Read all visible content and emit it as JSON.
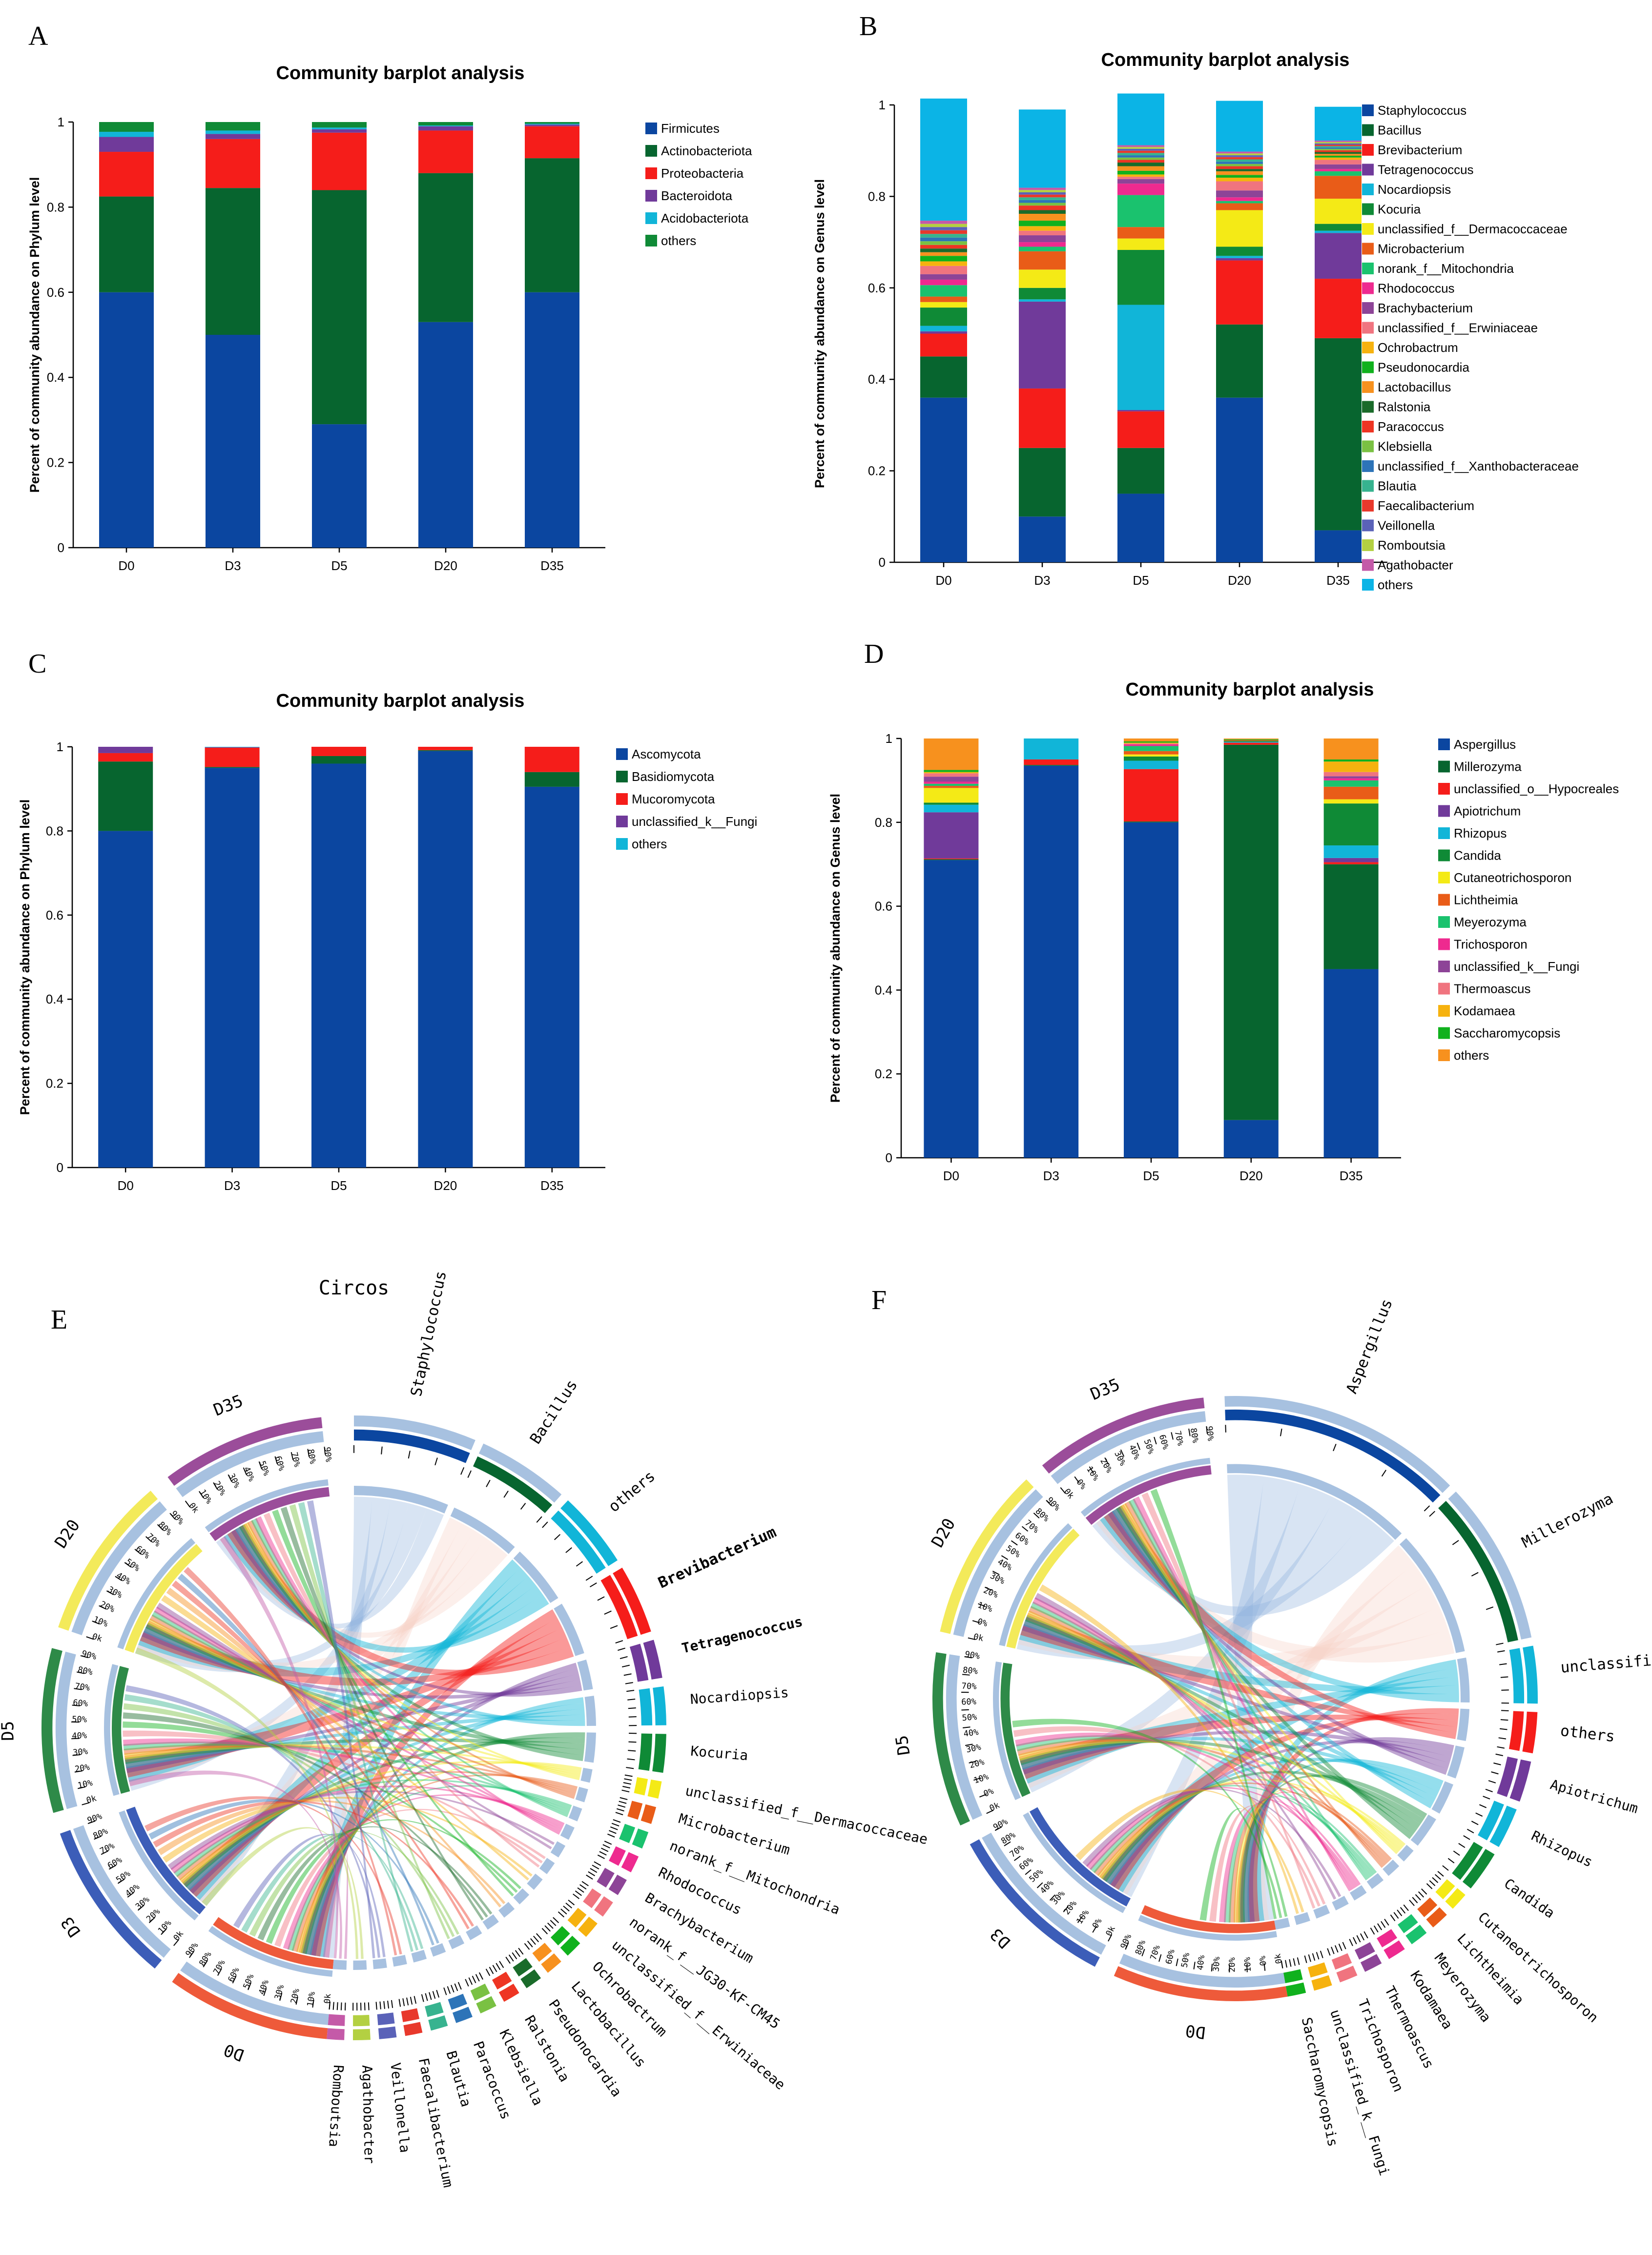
{
  "panels": {
    "A": {
      "letter": "A"
    },
    "B": {
      "letter": "B"
    },
    "C": {
      "letter": "C"
    },
    "D": {
      "letter": "D"
    },
    "E": {
      "letter": "E",
      "title": "Circos"
    },
    "F": {
      "letter": "F"
    }
  },
  "chart_data": [
    {
      "id": "A",
      "type": "bar",
      "stacked": true,
      "title": "Community barplot analysis",
      "xlabel": "",
      "ylabel": "Percent of community abundance on Phylum level",
      "ylim": [
        0,
        1
      ],
      "yticks": [
        "0",
        "0.2",
        "0.4",
        "0.6",
        "0.8",
        "1"
      ],
      "categories": [
        "D0",
        "D3",
        "D5",
        "D20",
        "D35"
      ],
      "legend_position": "right",
      "series": [
        {
          "name": "Firmicutes",
          "color": "#0b46a0",
          "values": [
            0.6,
            0.5,
            0.29,
            0.53,
            0.6
          ]
        },
        {
          "name": "Actinobacteriota",
          "color": "#07652f",
          "values": [
            0.225,
            0.345,
            0.55,
            0.35,
            0.315
          ]
        },
        {
          "name": "Proteobacteria",
          "color": "#f51d1a",
          "values": [
            0.105,
            0.115,
            0.135,
            0.1,
            0.075
          ]
        },
        {
          "name": "Bacteroidota",
          "color": "#703a9a",
          "values": [
            0.035,
            0.012,
            0.008,
            0.01,
            0.004
          ]
        },
        {
          "name": "Acidobacteriota",
          "color": "#11b5d8",
          "values": [
            0.012,
            0.008,
            0.004,
            0.002,
            0.002
          ]
        },
        {
          "name": "others",
          "color": "#0f8a36",
          "values": [
            0.023,
            0.02,
            0.013,
            0.008,
            0.004
          ]
        }
      ]
    },
    {
      "id": "B",
      "type": "bar",
      "stacked": true,
      "title": "Community barplot analysis",
      "xlabel": "",
      "ylabel": "Percent of community abundance on Genus level",
      "ylim": [
        0,
        1
      ],
      "yticks": [
        "0",
        "0.2",
        "0.4",
        "0.6",
        "0.8",
        "1"
      ],
      "categories": [
        "D0",
        "D3",
        "D5",
        "D20",
        "D35"
      ],
      "legend_position": "right",
      "series": [
        {
          "name": "Staphylococcus",
          "color": "#0b46a0",
          "values": [
            0.36,
            0.1,
            0.15,
            0.36,
            0.07
          ]
        },
        {
          "name": "Bacillus",
          "color": "#07652f",
          "values": [
            0.09,
            0.15,
            0.1,
            0.16,
            0.42
          ]
        },
        {
          "name": "Brevibacterium",
          "color": "#f51d1a",
          "values": [
            0.05,
            0.13,
            0.08,
            0.14,
            0.13
          ]
        },
        {
          "name": "Tetragenococcus",
          "color": "#703a9a",
          "values": [
            0.005,
            0.19,
            0.003,
            0.005,
            0.1
          ]
        },
        {
          "name": "Nocardiopsis",
          "color": "#11b5d8",
          "values": [
            0.012,
            0.005,
            0.23,
            0.005,
            0.005
          ]
        },
        {
          "name": "Kocuria",
          "color": "#0f8a36",
          "values": [
            0.04,
            0.025,
            0.12,
            0.02,
            0.015
          ]
        },
        {
          "name": "unclassified_f__Dermacoccaceae",
          "color": "#f4ea16",
          "values": [
            0.012,
            0.04,
            0.025,
            0.08,
            0.055
          ]
        },
        {
          "name": "Microbacterium",
          "color": "#e95c18",
          "values": [
            0.012,
            0.04,
            0.025,
            0.015,
            0.05
          ]
        },
        {
          "name": "norank_f__Mitochondria",
          "color": "#1ac26e",
          "values": [
            0.025,
            0.01,
            0.07,
            0.005,
            0.01
          ]
        },
        {
          "name": "Rhodococcus",
          "color": "#ee2a8f",
          "values": [
            0.012,
            0.01,
            0.025,
            0.008,
            0.005
          ]
        },
        {
          "name": "Brachybacterium",
          "color": "#8d4497",
          "values": [
            0.012,
            0.015,
            0.01,
            0.015,
            0.01
          ]
        },
        {
          "name": "unclassified_f__Erwiniaceae",
          "color": "#f0747f",
          "values": [
            0.018,
            0.01,
            0.005,
            0.02,
            0.01
          ]
        },
        {
          "name": "Ochrobactrum",
          "color": "#f6b20f",
          "values": [
            0.01,
            0.01,
            0.005,
            0.008,
            0.005
          ]
        },
        {
          "name": "Pseudonocardia",
          "color": "#10b11d",
          "values": [
            0.012,
            0.012,
            0.008,
            0.006,
            0.004
          ]
        },
        {
          "name": "Lactobacillus",
          "color": "#f7911e",
          "values": [
            0.008,
            0.015,
            0.01,
            0.008,
            0.004
          ]
        },
        {
          "name": "Ralstonia",
          "color": "#1a6b2a",
          "values": [
            0.008,
            0.008,
            0.008,
            0.005,
            0.004
          ]
        },
        {
          "name": "Paracoccus",
          "color": "#ee3523",
          "values": [
            0.008,
            0.01,
            0.006,
            0.006,
            0.004
          ]
        },
        {
          "name": "Klebsiella",
          "color": "#7ac143",
          "values": [
            0.008,
            0.006,
            0.005,
            0.005,
            0.003
          ]
        },
        {
          "name": "unclassified_f__Xanthobacteraceae",
          "color": "#2d74b8",
          "values": [
            0.008,
            0.006,
            0.005,
            0.005,
            0.003
          ]
        },
        {
          "name": "Blautia",
          "color": "#37b38f",
          "values": [
            0.008,
            0.006,
            0.005,
            0.005,
            0.003
          ]
        },
        {
          "name": "Faecalibacterium",
          "color": "#e8392c",
          "values": [
            0.008,
            0.006,
            0.005,
            0.005,
            0.003
          ]
        },
        {
          "name": "Veillonella",
          "color": "#5a62b8",
          "values": [
            0.007,
            0.005,
            0.004,
            0.004,
            0.003
          ]
        },
        {
          "name": "Romboutsia",
          "color": "#b3d042",
          "values": [
            0.007,
            0.005,
            0.004,
            0.004,
            0.003
          ]
        },
        {
          "name": "Agathobacter",
          "color": "#c45aa8",
          "values": [
            0.007,
            0.005,
            0.004,
            0.004,
            0.003
          ]
        },
        {
          "name": "others",
          "color": "#0bb4e6",
          "values": [
            0.267,
            0.171,
            0.113,
            0.111,
            0.074
          ]
        }
      ]
    },
    {
      "id": "C",
      "type": "bar",
      "stacked": true,
      "title": "Community barplot analysis",
      "xlabel": "",
      "ylabel": "Percent of community abundance on Phylum level",
      "ylim": [
        0,
        1
      ],
      "yticks": [
        "0",
        "0.2",
        "0.4",
        "0.6",
        "0.8",
        "1"
      ],
      "categories": [
        "D0",
        "D3",
        "D5",
        "D20",
        "D35"
      ],
      "legend_position": "right",
      "series": [
        {
          "name": "Ascomycota",
          "color": "#0b46a0",
          "values": [
            0.8,
            0.95,
            0.96,
            0.99,
            0.905
          ]
        },
        {
          "name": "Basidiomycota",
          "color": "#07652f",
          "values": [
            0.165,
            0.002,
            0.018,
            0.002,
            0.035
          ]
        },
        {
          "name": "Mucoromycota",
          "color": "#f51d1a",
          "values": [
            0.02,
            0.046,
            0.022,
            0.008,
            0.06
          ]
        },
        {
          "name": "unclassified_k__Fungi",
          "color": "#703a9a",
          "values": [
            0.015,
            0.001,
            0.0,
            0.0,
            0.0
          ]
        },
        {
          "name": "others",
          "color": "#11b5d8",
          "values": [
            0.0,
            0.001,
            0.0,
            0.0,
            0.0
          ]
        }
      ]
    },
    {
      "id": "D",
      "type": "bar",
      "stacked": true,
      "title": "Community barplot analysis",
      "xlabel": "",
      "ylabel": "Percent of community abundance on Genus level",
      "ylim": [
        0,
        1
      ],
      "yticks": [
        "0",
        "0.2",
        "0.4",
        "0.6",
        "0.8",
        "1"
      ],
      "categories": [
        "D0",
        "D3",
        "D5",
        "D20",
        "D35"
      ],
      "legend_position": "right",
      "series": [
        {
          "name": "Aspergillus",
          "color": "#0b46a0",
          "values": [
            0.71,
            0.935,
            0.8,
            0.09,
            0.45
          ]
        },
        {
          "name": "Millerozyma",
          "color": "#07652f",
          "values": [
            0.002,
            0.002,
            0.002,
            0.895,
            0.25
          ]
        },
        {
          "name": "unclassified_o__Hypocreales",
          "color": "#f51d1a",
          "values": [
            0.002,
            0.013,
            0.125,
            0.005,
            0.005
          ]
        },
        {
          "name": "Apiotrichum",
          "color": "#703a9a",
          "values": [
            0.11,
            0.0,
            0.0,
            0.0,
            0.01
          ]
        },
        {
          "name": "Rhizopus",
          "color": "#11b5d8",
          "values": [
            0.018,
            0.05,
            0.02,
            0.002,
            0.03
          ]
        },
        {
          "name": "Candida",
          "color": "#0f8a36",
          "values": [
            0.005,
            0.0,
            0.01,
            0.002,
            0.1
          ]
        },
        {
          "name": "Cutaneotrichosporon",
          "color": "#f4ea16",
          "values": [
            0.035,
            0.0,
            0.005,
            0.0,
            0.01
          ]
        },
        {
          "name": "Lichtheimia",
          "color": "#e95c18",
          "values": [
            0.005,
            0.0,
            0.008,
            0.002,
            0.03
          ]
        },
        {
          "name": "Meyerozyma",
          "color": "#1ac26e",
          "values": [
            0.005,
            0.0,
            0.012,
            0.0,
            0.015
          ]
        },
        {
          "name": "Trichosporon",
          "color": "#ee2a8f",
          "values": [
            0.005,
            0.0,
            0.004,
            0.0,
            0.005
          ]
        },
        {
          "name": "unclassified_k__Fungi",
          "color": "#8d4497",
          "values": [
            0.012,
            0.0,
            0.0,
            0.0,
            0.005
          ]
        },
        {
          "name": "Thermoascus",
          "color": "#f0747f",
          "values": [
            0.008,
            0.0,
            0.002,
            0.0,
            0.01
          ]
        },
        {
          "name": "Kodamaea",
          "color": "#f6b20f",
          "values": [
            0.003,
            0.0,
            0.002,
            0.0,
            0.025
          ]
        },
        {
          "name": "Saccharomycopsis",
          "color": "#10b11d",
          "values": [
            0.005,
            0.0,
            0.003,
            0.002,
            0.005
          ]
        },
        {
          "name": "others",
          "color": "#f7911e",
          "values": [
            0.075,
            0.0,
            0.007,
            0.002,
            0.05
          ]
        }
      ]
    },
    {
      "id": "E",
      "type": "chord",
      "title": "Circos",
      "samples": [
        {
          "name": "D0",
          "color": "#ee5a3a"
        },
        {
          "name": "D3",
          "color": "#3c5db8"
        },
        {
          "name": "D5",
          "color": "#2e8a48"
        },
        {
          "name": "D20",
          "color": "#f3ea5a"
        },
        {
          "name": "D35",
          "color": "#9b4d9a"
        }
      ],
      "taxa": [
        "Staphylococcus",
        "Bacillus",
        "others",
        "Brevibacterium",
        "Tetragenococcus",
        "Nocardiopsis",
        "Kocuria",
        "unclassified_f__Dermacoccaceae",
        "Microbacterium",
        "norank_f__Mitochondria",
        "Rhodococcus",
        "Brachybacterium",
        "norank_f__JG30-KF-CM45",
        "unclassified_f__Erwiniaceae",
        "Ochrobactrum",
        "Lactobacillus",
        "Pseudonocardia",
        "Ralstonia",
        "Klebsiella",
        "Paracoccus",
        "Blautia",
        "Faecalibacterium",
        "Veillonella",
        "Agathobacter",
        "Romboutsia"
      ],
      "tick_labels": [
        "0k",
        "10%",
        "20%",
        "30%",
        "40%",
        "50%",
        "60%",
        "70%",
        "80%",
        "90%"
      ]
    },
    {
      "id": "F",
      "type": "chord",
      "title": "",
      "samples": [
        {
          "name": "D0",
          "color": "#ee5a3a"
        },
        {
          "name": "D3",
          "color": "#3c5db8"
        },
        {
          "name": "D5",
          "color": "#2e8a48"
        },
        {
          "name": "D20",
          "color": "#f3ea5a"
        },
        {
          "name": "D35",
          "color": "#9b4d9a"
        }
      ],
      "taxa": [
        "Aspergillus",
        "Millerozyma",
        "unclassified_o__Hypocreales",
        "others",
        "Apiotrichum",
        "Rhizopus",
        "Candida",
        "Cutaneotrichosporon",
        "Lichtheimia",
        "Meyerozyma",
        "Kodamaea",
        "Thermoascus",
        "Trichosporon",
        "unclassified_k__Fungi",
        "Saccharomycopsis"
      ],
      "tick_labels": [
        "0k",
        "0%",
        "10%",
        "20%",
        "30%",
        "40%",
        "50%",
        "60%",
        "70%",
        "80%",
        "90%"
      ]
    }
  ]
}
